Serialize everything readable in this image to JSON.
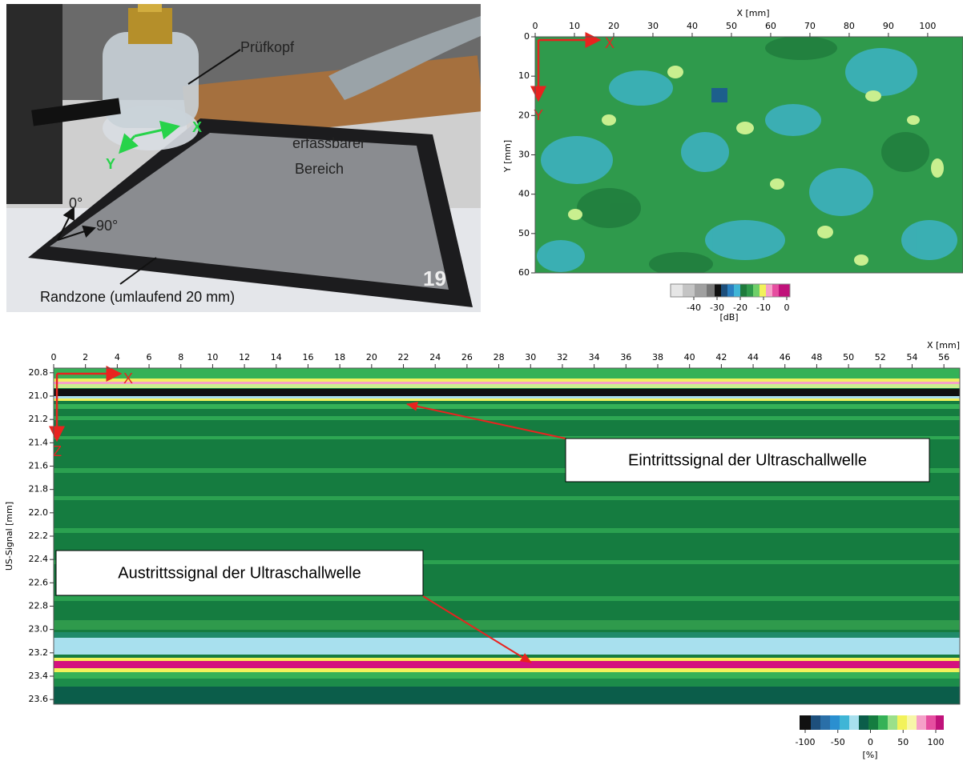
{
  "photo": {
    "probe_label": "Prüfkopf",
    "axis_x": "X",
    "axis_y": "Y",
    "area_label": [
      "erfassbarer",
      "Bereich"
    ],
    "angle_0": "0°",
    "angle_90": "90°",
    "edge_label": "Randzone (umlaufend 20 mm)",
    "sample_number": "19"
  },
  "chart_data": [
    {
      "type": "heatmap",
      "xlabel": "X [mm]",
      "ylabel": "Y [mm]",
      "xlim": [
        0,
        109
      ],
      "ylim": [
        0,
        60
      ],
      "xticks": [
        0,
        10,
        20,
        30,
        40,
        50,
        60,
        70,
        80,
        90,
        100
      ],
      "yticks": [
        0,
        10,
        20,
        30,
        40,
        50,
        60
      ],
      "axis_arrows": [
        "X",
        "Y"
      ],
      "colorbar": {
        "label": "[dB]",
        "lim": [
          -50,
          0
        ],
        "ticks": [
          -40,
          -30,
          -20,
          -10,
          0
        ]
      }
    },
    {
      "type": "heatmap",
      "xlabel": "X [mm]",
      "ylabel": "US-Signal [mm]",
      "xlim": [
        0,
        57
      ],
      "ylim": [
        20.76,
        23.64
      ],
      "xticks": [
        0,
        2,
        4,
        6,
        8,
        10,
        12,
        14,
        16,
        18,
        20,
        22,
        24,
        26,
        28,
        30,
        32,
        34,
        36,
        38,
        40,
        42,
        44,
        46,
        48,
        50,
        52,
        54,
        56
      ],
      "yticks": [
        20.8,
        {
          "value": 21,
          "label": "21.0"
        },
        21.2,
        21.4,
        21.6,
        21.8,
        {
          "value": 22,
          "label": "22.0"
        },
        22.2,
        22.4,
        22.6,
        22.8,
        {
          "value": 23,
          "label": "23.0"
        },
        23.2,
        23.4,
        23.6
      ],
      "axis_arrows": [
        "X",
        "Z"
      ],
      "annotations": [
        "Eintrittssignal der Ultraschallwelle",
        "Austrittssignal der Ultraschallwelle"
      ],
      "colorbar": {
        "label": "[%]",
        "lim": [
          -100,
          100
        ],
        "ticks": [
          -100,
          -50,
          0,
          50,
          100
        ]
      }
    }
  ]
}
